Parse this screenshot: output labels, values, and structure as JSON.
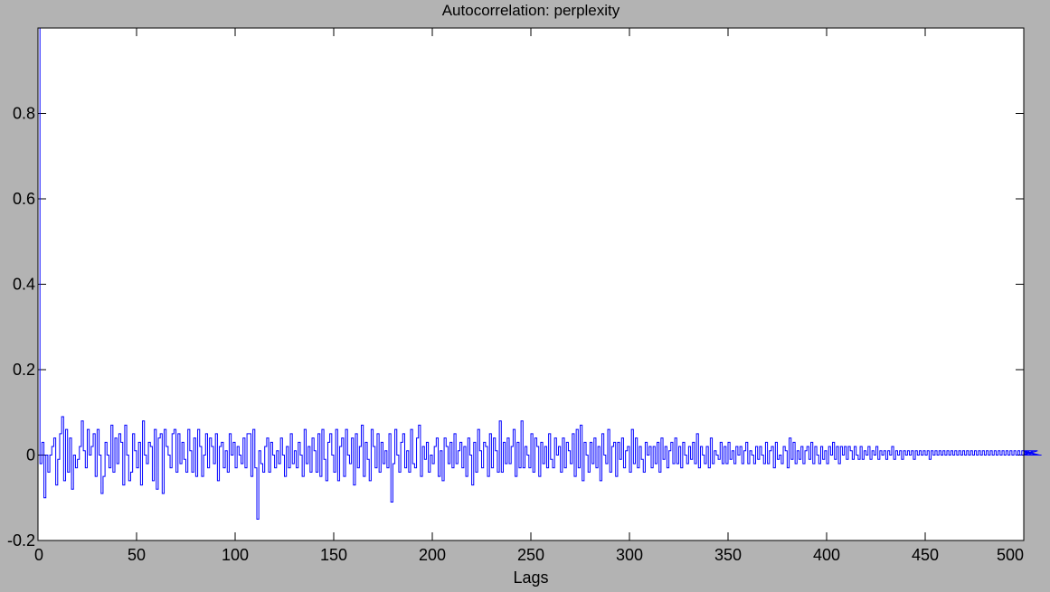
{
  "chart_data": {
    "type": "line",
    "style": "stairs",
    "title": "Autocorrelation: perplexity",
    "xlabel": "Lags",
    "ylabel": "",
    "xlim": [
      0,
      500
    ],
    "ylim": [
      -0.2,
      1.0
    ],
    "x_ticks": [
      0,
      50,
      100,
      150,
      200,
      250,
      300,
      350,
      400,
      450,
      500
    ],
    "x_tick_labels": [
      "0",
      "50",
      "100",
      "150",
      "200",
      "250",
      "300",
      "350",
      "400",
      "450",
      "500"
    ],
    "y_ticks": [
      -0.2,
      0,
      0.2,
      0.4,
      0.6,
      0.8
    ],
    "y_tick_labels": [
      "-0.2",
      "0",
      "0.2",
      "0.4",
      "0.6",
      "0.8"
    ],
    "grid": false,
    "colors": {
      "series": "#0000ff",
      "background": "#b3b3b3",
      "axes_bg": "#ffffff"
    },
    "series": [
      {
        "lag_start": 0,
        "lag_step": 1,
        "values": [
          1.0,
          -0.02,
          0.03,
          -0.1,
          0.0,
          -0.04,
          0.0,
          0.02,
          0.04,
          -0.07,
          -0.01,
          0.05,
          0.09,
          -0.06,
          0.06,
          -0.04,
          0.04,
          -0.08,
          0.0,
          -0.03,
          -0.01,
          0.02,
          0.08,
          0.01,
          -0.03,
          0.06,
          0.0,
          0.02,
          0.05,
          -0.05,
          0.06,
          0.0,
          -0.09,
          -0.05,
          0.03,
          0.0,
          -0.03,
          0.07,
          -0.04,
          0.04,
          -0.02,
          0.05,
          0.03,
          -0.07,
          0.07,
          0.0,
          -0.06,
          -0.04,
          0.05,
          0.01,
          -0.03,
          0.03,
          -0.07,
          0.08,
          0.0,
          -0.02,
          0.03,
          0.02,
          -0.06,
          0.06,
          -0.08,
          0.04,
          0.05,
          -0.09,
          0.06,
          0.02,
          0.0,
          -0.03,
          0.05,
          0.06,
          -0.04,
          0.05,
          -0.02,
          0.03,
          -0.01,
          -0.04,
          0.06,
          0.01,
          -0.04,
          0.04,
          -0.05,
          0.06,
          0.02,
          -0.05,
          0.0,
          0.05,
          -0.03,
          0.04,
          0.02,
          -0.02,
          0.05,
          -0.06,
          0.02,
          0.03,
          -0.03,
          0.01,
          -0.04,
          0.05,
          0.0,
          0.03,
          -0.03,
          0.02,
          0.0,
          -0.02,
          0.04,
          -0.03,
          0.05,
          0.05,
          -0.05,
          0.06,
          -0.03,
          -0.15,
          0.01,
          -0.02,
          -0.04,
          0.02,
          0.04,
          -0.04,
          0.03,
          0.0,
          -0.03,
          0.01,
          -0.02,
          0.04,
          0.0,
          -0.05,
          0.02,
          -0.03,
          0.05,
          -0.02,
          0.01,
          -0.03,
          0.03,
          0.0,
          -0.05,
          0.06,
          -0.02,
          0.02,
          -0.04,
          0.04,
          0.01,
          -0.04,
          0.05,
          -0.05,
          0.06,
          -0.01,
          -0.06,
          0.03,
          0.05,
          0.0,
          -0.04,
          0.06,
          -0.06,
          0.02,
          0.04,
          -0.05,
          0.06,
          0.0,
          -0.02,
          0.04,
          -0.07,
          0.05,
          -0.03,
          0.02,
          0.07,
          -0.05,
          0.03,
          -0.01,
          -0.06,
          0.06,
          0.02,
          -0.03,
          0.05,
          -0.04,
          0.03,
          -0.02,
          0.01,
          -0.03,
          0.05,
          -0.11,
          -0.02,
          0.06,
          0.0,
          -0.04,
          0.03,
          0.05,
          -0.03,
          0.01,
          -0.04,
          0.06,
          -0.02,
          -0.03,
          0.04,
          0.07,
          -0.05,
          0.02,
          -0.01,
          0.03,
          -0.04,
          0.0,
          -0.02,
          0.02,
          0.04,
          -0.05,
          0.01,
          -0.06,
          0.04,
          0.02,
          -0.02,
          0.03,
          -0.03,
          0.05,
          -0.02,
          0.01,
          0.03,
          -0.03,
          0.02,
          -0.05,
          0.04,
          0.0,
          -0.07,
          0.03,
          -0.04,
          0.06,
          0.01,
          -0.03,
          0.03,
          0.02,
          -0.05,
          0.05,
          -0.03,
          0.04,
          0.01,
          -0.04,
          0.08,
          -0.04,
          0.03,
          -0.02,
          0.04,
          -0.02,
          0.02,
          0.06,
          -0.05,
          0.03,
          -0.03,
          0.08,
          -0.03,
          0.02,
          0.0,
          -0.03,
          0.05,
          -0.04,
          0.04,
          0.02,
          -0.05,
          0.03,
          -0.02,
          0.02,
          -0.03,
          0.05,
          -0.01,
          -0.03,
          0.04,
          0.0,
          0.02,
          -0.04,
          0.04,
          -0.03,
          0.03,
          0.01,
          -0.02,
          0.05,
          -0.05,
          0.06,
          -0.03,
          0.07,
          -0.06,
          0.03,
          0.0,
          -0.04,
          0.03,
          -0.02,
          0.04,
          -0.03,
          0.02,
          -0.06,
          0.05,
          0.0,
          -0.02,
          0.06,
          -0.04,
          0.02,
          0.03,
          -0.05,
          0.03,
          -0.01,
          0.04,
          -0.03,
          0.01,
          0.02,
          -0.04,
          0.06,
          -0.02,
          0.04,
          -0.03,
          0.02,
          -0.01,
          -0.04,
          0.03,
          0.0,
          0.02,
          -0.03,
          0.02,
          -0.02,
          0.03,
          -0.04,
          0.04,
          -0.01,
          0.02,
          -0.03,
          0.01,
          0.03,
          -0.02,
          0.04,
          -0.02,
          0.02,
          -0.03,
          0.03,
          0.0,
          -0.02,
          0.02,
          -0.01,
          0.03,
          -0.02,
          0.05,
          -0.03,
          0.02,
          0.0,
          -0.02,
          0.02,
          -0.03,
          0.04,
          -0.02,
          0.01,
          0.0,
          -0.01,
          0.03,
          -0.02,
          0.02,
          -0.02,
          0.03,
          -0.01,
          0.01,
          -0.02,
          0.02,
          0.0,
          0.02,
          -0.02,
          0.01,
          0.03,
          -0.02,
          0.01,
          0.0,
          -0.02,
          0.02,
          -0.01,
          0.02,
          0.0,
          -0.02,
          0.03,
          -0.02,
          0.01,
          0.02,
          -0.03,
          0.03,
          -0.01,
          0.0,
          -0.02,
          0.02,
          0.01,
          -0.03,
          0.04,
          -0.01,
          0.03,
          -0.02,
          0.01,
          -0.01,
          0.02,
          -0.02,
          0.01,
          0.02,
          -0.01,
          0.03,
          -0.02,
          0.02,
          0.0,
          -0.02,
          0.02,
          -0.01,
          0.01,
          -0.02,
          0.02,
          0.0,
          0.03,
          -0.01,
          0.02,
          -0.02,
          0.02,
          0.0,
          0.02,
          -0.01,
          0.02,
          0.01,
          -0.01,
          0.02,
          0.0,
          -0.01,
          0.02,
          -0.01,
          0.01,
          0.0,
          0.02,
          -0.01,
          0.01,
          0.0,
          0.02,
          -0.01,
          0.01,
          0.0,
          0.01,
          -0.01,
          0.01,
          0.0,
          0.02,
          -0.01,
          0.01,
          0.0,
          0.01,
          -0.01,
          0.01,
          0.0,
          0.01,
          0.0,
          0.01,
          -0.01,
          0.01,
          0.0,
          0.01,
          0.0,
          0.01,
          0.0,
          0.01,
          -0.01,
          0.01,
          0.0,
          0.01,
          0.0,
          0.01,
          0.0,
          0.01,
          0.0,
          0.01,
          0.0,
          0.01,
          0.0,
          0.01,
          0.0,
          0.01,
          0.0,
          0.01,
          0.0,
          0.01,
          0.0,
          0.01,
          0.0,
          0.01,
          0.0,
          0.01,
          0.0,
          0.01,
          0.0,
          0.01,
          0.0,
          0.01,
          0.0,
          0.01,
          0.0,
          0.01,
          0.0,
          0.01,
          0.0,
          0.01,
          0.0,
          0.01,
          0.0,
          0.01,
          0.0,
          0.01,
          0.0,
          0.01,
          0.0,
          0.01,
          0.0,
          0.01,
          0.0,
          0.01,
          0.0,
          0.01,
          0.0,
          0.0
        ]
      }
    ]
  }
}
